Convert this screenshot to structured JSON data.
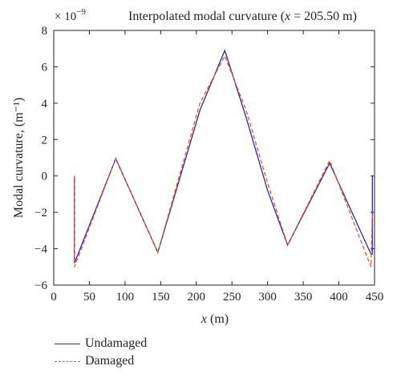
{
  "chart_data": {
    "type": "line",
    "title_prefix": "Interpolated modal curvature (",
    "title_var": "x",
    "title_suffix": " = 205.50 m)",
    "exponent_label": "× 10",
    "exponent_power": "−9",
    "xlabel_var": "x",
    "xlabel_unit": " (m)",
    "ylabel": "Modal curvature, (m⁻¹)",
    "xlim": [
      0,
      450
    ],
    "ylim": [
      -6,
      8
    ],
    "xticks": [
      "0",
      "50",
      "100",
      "150",
      "200",
      "250",
      "300",
      "350",
      "400",
      "450"
    ],
    "yticks": [
      "−6",
      "−4",
      "−2",
      "0",
      "2",
      "4",
      "6",
      "8"
    ],
    "grid": false,
    "legend_placement": "bottom-left, below plot",
    "series": [
      {
        "name": "Undamaged",
        "color": "#2b2b9a",
        "style": "solid",
        "x": [
          29,
          29,
          87,
          146,
          205,
          240,
          270,
          300,
          328,
          387,
          445,
          447,
          447,
          447
        ],
        "y": [
          0,
          -4.8,
          0.95,
          -4.2,
          3.6,
          6.9,
          3.2,
          -0.8,
          -3.8,
          0.7,
          -4.3,
          -4.3,
          0,
          -4.3
        ]
      },
      {
        "name": "Damaged",
        "color": "#e8552a",
        "style": "dashed",
        "x": [
          29,
          29,
          87,
          146,
          205,
          240,
          270,
          300,
          328,
          387,
          445,
          447
        ],
        "y": [
          0,
          -5.0,
          0.95,
          -4.2,
          4.0,
          6.6,
          3.6,
          -0.4,
          -3.8,
          0.85,
          -5.0,
          -2.0
        ]
      }
    ]
  }
}
